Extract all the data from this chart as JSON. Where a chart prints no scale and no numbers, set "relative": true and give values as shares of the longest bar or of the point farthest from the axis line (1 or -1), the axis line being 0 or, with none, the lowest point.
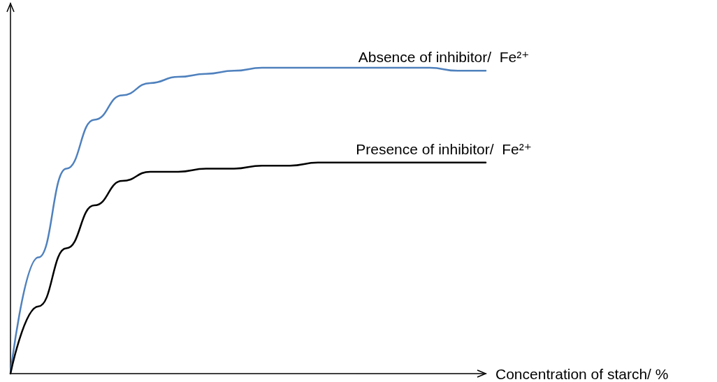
{
  "chart_data": {
    "type": "line",
    "relative": true,
    "xlabel": "Concentration of starch/ %",
    "categories": [
      null,
      null,
      null,
      null,
      null,
      null,
      null,
      null,
      null,
      null,
      null,
      null,
      null,
      null,
      null,
      null,
      null,
      null
    ],
    "marker": "none",
    "line_style": "solid",
    "grid": false,
    "legend": false,
    "series": [
      {
        "name": "Absence of inhibitor/  Fe²⁺",
        "color": "#4f81bd",
        "values": [
          0,
          0.38,
          0.67,
          0.83,
          0.91,
          0.95,
          0.97,
          0.98,
          0.99,
          1,
          1,
          1,
          1,
          1,
          1,
          1,
          0.99,
          0.99
        ]
      },
      {
        "name": "Presence of inhibitor/  Fe²⁺",
        "color": "#000000",
        "values": [
          0,
          0.22,
          0.41,
          0.55,
          0.63,
          0.66,
          0.66,
          0.67,
          0.67,
          0.68,
          0.68,
          0.69,
          0.69,
          0.69,
          0.69,
          0.69,
          0.69,
          0.69
        ]
      }
    ]
  }
}
